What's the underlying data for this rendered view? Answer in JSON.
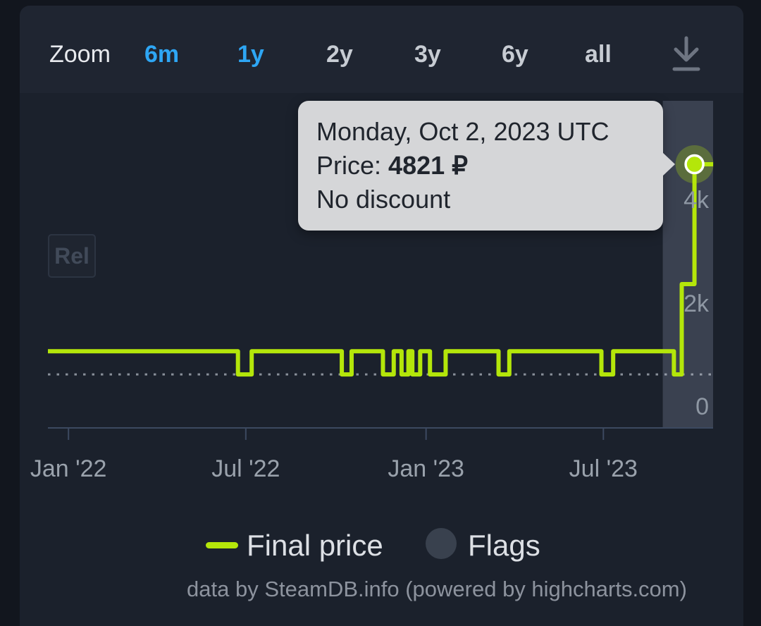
{
  "toolbar": {
    "zoom_label": "Zoom",
    "ranges": [
      {
        "label": "6m",
        "active": true
      },
      {
        "label": "1y",
        "active": true
      },
      {
        "label": "2y",
        "active": false
      },
      {
        "label": "3y",
        "active": false
      },
      {
        "label": "6y",
        "active": false
      },
      {
        "label": "all",
        "active": false
      }
    ],
    "download_icon": "download-icon"
  },
  "tooltip": {
    "title": "Monday, Oct 2, 2023 UTC",
    "price_label": "Price:",
    "price_value": "4821 ₽",
    "discount_text": "No discount"
  },
  "chart_data": {
    "type": "line",
    "step": true,
    "currency": "₽",
    "x_range": [
      "2021-12-11",
      "2023-10-21"
    ],
    "ylim": [
      0,
      6050
    ],
    "grid": false,
    "legend_position": "bottom",
    "series": [
      {
        "name": "Final price",
        "color": "#b4e60a",
        "points": [
          {
            "date": "2021-12-11",
            "price": 1199
          },
          {
            "date": "2022-06-23",
            "price": 749
          },
          {
            "date": "2022-07-07",
            "price": 1199
          },
          {
            "date": "2022-10-07",
            "price": 749
          },
          {
            "date": "2022-10-17",
            "price": 1199
          },
          {
            "date": "2022-11-18",
            "price": 749
          },
          {
            "date": "2022-11-29",
            "price": 1199
          },
          {
            "date": "2022-12-07",
            "price": 749
          },
          {
            "date": "2022-12-14",
            "price": 1199
          },
          {
            "date": "2022-12-18",
            "price": 749
          },
          {
            "date": "2022-12-26",
            "price": 1199
          },
          {
            "date": "2023-01-05",
            "price": 749
          },
          {
            "date": "2023-01-21",
            "price": 1199
          },
          {
            "date": "2023-03-16",
            "price": 749
          },
          {
            "date": "2023-03-27",
            "price": 1199
          },
          {
            "date": "2023-06-29",
            "price": 749
          },
          {
            "date": "2023-07-11",
            "price": 1199
          },
          {
            "date": "2023-09-11",
            "price": 749
          },
          {
            "date": "2023-09-19",
            "price": 2500
          },
          {
            "date": "2023-10-02",
            "price": 4821
          }
        ]
      },
      {
        "name": "Flags",
        "color": "#39414e",
        "flags": [
          {
            "label": "Rel"
          }
        ]
      }
    ],
    "lowest_price_line": 749,
    "hover_point": {
      "date": "2023-10-02",
      "price": 4821
    },
    "x_ticks": [
      {
        "label": "Jan '22",
        "date": "2022-01-01"
      },
      {
        "label": "Jul '22",
        "date": "2022-07-01"
      },
      {
        "label": "Jan '23",
        "date": "2023-01-01"
      },
      {
        "label": "Jul '23",
        "date": "2023-07-01"
      }
    ],
    "y_ticks": [
      {
        "label": "4k",
        "value": 4000
      },
      {
        "label": "2k",
        "value": 2000
      },
      {
        "label": "0",
        "value": 0
      }
    ]
  },
  "flag_box": {
    "label": "Rel"
  },
  "legend": {
    "items": [
      {
        "label": "Final price",
        "marker": "line-dash"
      },
      {
        "label": "Flags",
        "marker": "circle"
      }
    ]
  },
  "credit_text": "data by SteamDB.info (powered by highcharts.com)",
  "colors": {
    "accent_green": "#b4e60a",
    "accent_blue": "#2ea6f4",
    "page_bg": "#12161e",
    "card_bg": "#1f2531",
    "chart_bg": "#1b212c",
    "crosshair_band": "#3a4150",
    "axis": "#3c4960",
    "dotted_line": "#c5ccd5",
    "tooltip_bg": "#d5d6d8",
    "tooltip_text": "#20252d",
    "marker_stroke": "#ffffff"
  }
}
